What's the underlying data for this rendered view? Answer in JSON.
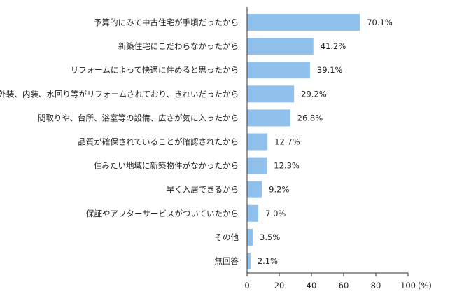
{
  "chart_data": {
    "type": "bar",
    "orientation": "horizontal",
    "title": "",
    "xlabel": "",
    "ylabel": "",
    "unit": "(%)",
    "xlim": [
      0,
      100
    ],
    "xticks": [
      "0",
      "20",
      "40",
      "60",
      "80",
      "100"
    ],
    "grid": false,
    "bar_color": "#8fc1ec",
    "categories": [
      "予算的にみて中古住宅が手頃だったから",
      "新築住宅にこだわらなかったから",
      "リフォームによって快適に住めると思ったから",
      "外装、内装、水回り等がリフォームされており、きれいだったから",
      "間取りや、台所、浴室等の設備、広さが気に入ったから",
      "品質が確保されていることが確認されたから",
      "住みたい地域に新築物件がなかったから",
      "早く入居できるから",
      "保証やアフターサービスがついていたから",
      "その他",
      "無回答"
    ],
    "values": [
      70.1,
      41.2,
      39.1,
      29.2,
      26.8,
      12.7,
      12.3,
      9.2,
      7.0,
      3.5,
      2.1
    ],
    "value_labels": [
      "70.1%",
      "41.2%",
      "39.1%",
      "29.2%",
      "26.8%",
      "12.7%",
      "12.3%",
      "9.2%",
      "7.0%",
      "3.5%",
      "2.1%"
    ]
  }
}
